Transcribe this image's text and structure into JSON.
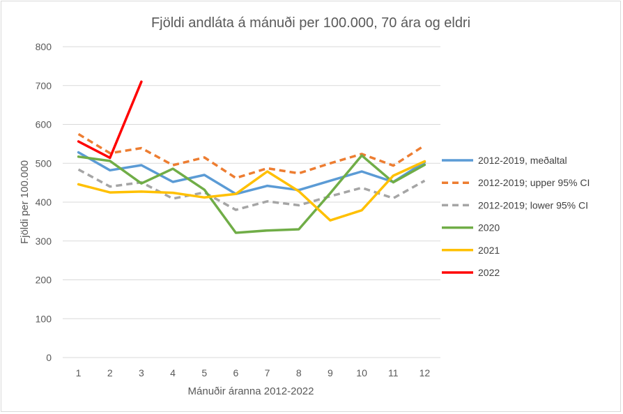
{
  "chart_data": {
    "type": "line",
    "title": "Fjöldi andláta á mánuði per 100.000, 70 ára og eldri",
    "xlabel": "Mánuðir áranna 2012-2022",
    "ylabel": "Fjöldi per 100.000",
    "ylim": [
      0,
      800
    ],
    "yticks": [
      0,
      100,
      200,
      300,
      400,
      500,
      600,
      700,
      800
    ],
    "categories": [
      "1",
      "2",
      "3",
      "4",
      "5",
      "6",
      "7",
      "8",
      "9",
      "10",
      "11",
      "12"
    ],
    "grid": true,
    "legend_position": "right",
    "series": [
      {
        "name": "2012-2019, meðaltal",
        "color": "#5b9bd5",
        "dash": "solid",
        "values": [
          528,
          482,
          495,
          452,
          470,
          421,
          442,
          431,
          455,
          479,
          452,
          503
        ]
      },
      {
        "name": "2012-2019; upper 95% CI",
        "color": "#ed7d31",
        "dash": "dashed",
        "values": [
          575,
          526,
          539,
          495,
          515,
          462,
          487,
          474,
          500,
          524,
          494,
          546
        ]
      },
      {
        "name": "2012-2019; lower 95% CI",
        "color": "#a5a5a5",
        "dash": "dashed",
        "values": [
          484,
          440,
          451,
          409,
          425,
          380,
          402,
          392,
          415,
          437,
          410,
          455
        ]
      },
      {
        "name": "2020",
        "color": "#70ad47",
        "dash": "solid",
        "values": [
          517,
          506,
          448,
          486,
          432,
          321,
          327,
          330,
          423,
          520,
          451,
          496
        ]
      },
      {
        "name": "2021",
        "color": "#ffc000",
        "dash": "solid",
        "values": [
          446,
          425,
          427,
          424,
          412,
          421,
          479,
          428,
          353,
          379,
          468,
          505
        ]
      },
      {
        "name": "2022",
        "color": "#ff0000",
        "dash": "solid",
        "values": [
          556,
          514,
          710,
          null,
          null,
          null,
          null,
          null,
          null,
          null,
          null,
          null
        ]
      }
    ]
  }
}
